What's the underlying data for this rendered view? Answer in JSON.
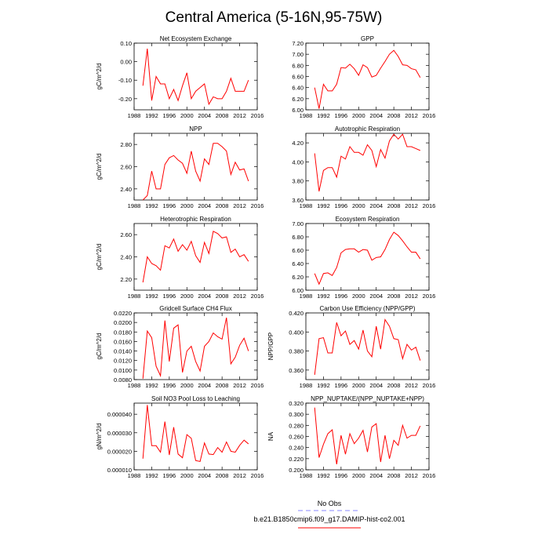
{
  "title": "Central America (5-16N,95-75W)",
  "legend": {
    "entries": [
      {
        "label": "No Obs",
        "color": "#8888ff",
        "dash": true
      },
      {
        "label": "b.e21.B1850cmip6.f09_g17.DAMIP-hist-co2.001",
        "color": "#ff0000",
        "dash": false
      }
    ]
  },
  "chart_data": [
    {
      "type": "line",
      "title": "Net Ecosystem Exchange",
      "ylabel": "gC/m^2/d",
      "xlim": [
        1988,
        2016
      ],
      "ylim": [
        -0.26,
        0.1
      ],
      "xticks": [
        "1988",
        "1992",
        "1996",
        "2000",
        "2004",
        "2008",
        "2012",
        "2016"
      ],
      "yticks": [
        "0.10",
        "0.00",
        "-0.10",
        "-0.20"
      ],
      "ytick_values": [
        0.1,
        0.0,
        -0.1,
        -0.2
      ],
      "x": [
        1990,
        1991,
        1992,
        1993,
        1994,
        1995,
        1996,
        1997,
        1998,
        1999,
        2000,
        2001,
        2002,
        2003,
        2004,
        2005,
        2006,
        2007,
        2008,
        2009,
        2010,
        2011,
        2012,
        2013,
        2014
      ],
      "series": [
        {
          "name": "b.e21.B1850cmip6.f09_g17.DAMIP-hist-co2.001",
          "color": "#ff0000",
          "values": [
            -0.13,
            0.07,
            -0.21,
            -0.08,
            -0.12,
            -0.12,
            -0.2,
            -0.15,
            -0.21,
            -0.13,
            -0.06,
            -0.2,
            -0.16,
            -0.14,
            -0.12,
            -0.23,
            -0.19,
            -0.2,
            -0.2,
            -0.16,
            -0.09,
            -0.16,
            -0.16,
            -0.16,
            -0.1
          ]
        }
      ]
    },
    {
      "type": "line",
      "title": "GPP",
      "ylabel": "",
      "xlim": [
        1988,
        2016
      ],
      "ylim": [
        6.0,
        7.2
      ],
      "xticks": [
        "1988",
        "1992",
        "1996",
        "2000",
        "2004",
        "2008",
        "2012",
        "2016"
      ],
      "yticks": [
        "7.20",
        "7.00",
        "6.80",
        "6.60",
        "6.40",
        "6.20",
        "6.00"
      ],
      "ytick_values": [
        7.2,
        7.0,
        6.8,
        6.6,
        6.4,
        6.2,
        6.0
      ],
      "x": [
        1990,
        1991,
        1992,
        1993,
        1994,
        1995,
        1996,
        1997,
        1998,
        1999,
        2000,
        2001,
        2002,
        2003,
        2004,
        2005,
        2006,
        2007,
        2008,
        2009,
        2010,
        2011,
        2012,
        2013,
        2014
      ],
      "series": [
        {
          "name": "b.e21.B1850cmip6.f09_g17.DAMIP-hist-co2.001",
          "color": "#ff0000",
          "values": [
            6.4,
            6.02,
            6.46,
            6.34,
            6.34,
            6.46,
            6.76,
            6.75,
            6.82,
            6.74,
            6.62,
            6.81,
            6.76,
            6.59,
            6.62,
            6.75,
            6.87,
            7.0,
            7.07,
            6.96,
            6.81,
            6.8,
            6.74,
            6.72,
            6.58
          ]
        }
      ]
    },
    {
      "type": "line",
      "title": "NPP",
      "ylabel": "gC/m^2/d",
      "xlim": [
        1988,
        2016
      ],
      "ylim": [
        2.3,
        2.9
      ],
      "xticks": [
        "1988",
        "1992",
        "1996",
        "2000",
        "2004",
        "2008",
        "2012",
        "2016"
      ],
      "yticks": [
        "2.80",
        "2.60",
        "2.40"
      ],
      "ytick_values": [
        2.8,
        2.6,
        2.4
      ],
      "x": [
        1990,
        1991,
        1992,
        1993,
        1994,
        1995,
        1996,
        1997,
        1998,
        1999,
        2000,
        2001,
        2002,
        2003,
        2004,
        2005,
        2006,
        2007,
        2008,
        2009,
        2010,
        2011,
        2012,
        2013,
        2014
      ],
      "series": [
        {
          "name": "b.e21.B1850cmip6.f09_g17.DAMIP-hist-co2.001",
          "color": "#ff0000",
          "values": [
            2.3,
            2.34,
            2.56,
            2.4,
            2.4,
            2.62,
            2.68,
            2.7,
            2.66,
            2.63,
            2.54,
            2.74,
            2.56,
            2.47,
            2.67,
            2.62,
            2.81,
            2.81,
            2.78,
            2.74,
            2.53,
            2.64,
            2.57,
            2.58,
            2.47
          ]
        }
      ]
    },
    {
      "type": "line",
      "title": "Autotrophic Respiration",
      "ylabel": "",
      "xlim": [
        1988,
        2016
      ],
      "ylim": [
        3.6,
        4.3
      ],
      "xticks": [
        "1988",
        "1992",
        "1996",
        "2000",
        "2004",
        "2008",
        "2012",
        "2016"
      ],
      "yticks": [
        "4.20",
        "4.00",
        "3.80",
        "3.60"
      ],
      "ytick_values": [
        4.2,
        4.0,
        3.8,
        3.6
      ],
      "x": [
        1990,
        1991,
        1992,
        1993,
        1994,
        1995,
        1996,
        1997,
        1998,
        1999,
        2000,
        2001,
        2002,
        2003,
        2004,
        2005,
        2006,
        2007,
        2008,
        2009,
        2010,
        2011,
        2012,
        2013,
        2014
      ],
      "series": [
        {
          "name": "b.e21.B1850cmip6.f09_g17.DAMIP-hist-co2.001",
          "color": "#ff0000",
          "values": [
            4.09,
            3.69,
            3.91,
            3.94,
            3.94,
            3.84,
            4.06,
            4.03,
            4.16,
            4.1,
            4.1,
            4.07,
            4.18,
            4.12,
            3.95,
            4.13,
            4.04,
            4.22,
            4.29,
            4.24,
            4.29,
            4.16,
            4.16,
            4.14,
            4.12
          ]
        }
      ]
    },
    {
      "type": "line",
      "title": "Heterotrophic Respiration",
      "ylabel": "gC/m^2/d",
      "xlim": [
        1988,
        2016
      ],
      "ylim": [
        2.1,
        2.7
      ],
      "xticks": [
        "1988",
        "1992",
        "1996",
        "2000",
        "2004",
        "2008",
        "2012",
        "2016"
      ],
      "yticks": [
        "2.60",
        "2.40",
        "2.20"
      ],
      "ytick_values": [
        2.6,
        2.4,
        2.2
      ],
      "x": [
        1990,
        1991,
        1992,
        1993,
        1994,
        1995,
        1996,
        1997,
        1998,
        1999,
        2000,
        2001,
        2002,
        2003,
        2004,
        2005,
        2006,
        2007,
        2008,
        2009,
        2010,
        2011,
        2012,
        2013,
        2014
      ],
      "series": [
        {
          "name": "b.e21.B1850cmip6.f09_g17.DAMIP-hist-co2.001",
          "color": "#ff0000",
          "values": [
            2.17,
            2.4,
            2.34,
            2.32,
            2.28,
            2.5,
            2.48,
            2.56,
            2.45,
            2.51,
            2.46,
            2.54,
            2.41,
            2.35,
            2.53,
            2.43,
            2.63,
            2.61,
            2.57,
            2.58,
            2.44,
            2.47,
            2.4,
            2.42,
            2.36
          ]
        }
      ]
    },
    {
      "type": "line",
      "title": "Ecosystem Respiration",
      "ylabel": "",
      "xlim": [
        1988,
        2016
      ],
      "ylim": [
        6.0,
        7.0
      ],
      "xticks": [
        "1988",
        "1992",
        "1996",
        "2000",
        "2004",
        "2008",
        "2012",
        "2016"
      ],
      "yticks": [
        "7.00",
        "6.80",
        "6.60",
        "6.40",
        "6.20",
        "6.00"
      ],
      "ytick_values": [
        7.0,
        6.8,
        6.6,
        6.4,
        6.2,
        6.0
      ],
      "x": [
        1990,
        1991,
        1992,
        1993,
        1994,
        1995,
        1996,
        1997,
        1998,
        1999,
        2000,
        2001,
        2002,
        2003,
        2004,
        2005,
        2006,
        2007,
        2008,
        2009,
        2010,
        2011,
        2012,
        2013,
        2014
      ],
      "series": [
        {
          "name": "b.e21.B1850cmip6.f09_g17.DAMIP-hist-co2.001",
          "color": "#ff0000",
          "values": [
            6.25,
            6.09,
            6.25,
            6.26,
            6.22,
            6.34,
            6.56,
            6.61,
            6.62,
            6.62,
            6.57,
            6.61,
            6.6,
            6.45,
            6.49,
            6.5,
            6.61,
            6.76,
            6.87,
            6.82,
            6.74,
            6.65,
            6.57,
            6.57,
            6.47
          ]
        }
      ]
    },
    {
      "type": "line",
      "title": "Gridcell Surface CH4 Flux",
      "ylabel": "gC/m^2/d",
      "xlim": [
        1988,
        2016
      ],
      "ylim": [
        0.008,
        0.022
      ],
      "xticks": [
        "1988",
        "1992",
        "1996",
        "2000",
        "2004",
        "2008",
        "2012",
        "2016"
      ],
      "yticks": [
        "0.0220",
        "0.0200",
        "0.0180",
        "0.0160",
        "0.0140",
        "0.0120",
        "0.0100",
        "0.0080"
      ],
      "ytick_values": [
        0.022,
        0.02,
        0.018,
        0.016,
        0.014,
        0.012,
        0.01,
        0.008
      ],
      "x": [
        1990,
        1991,
        1992,
        1993,
        1994,
        1995,
        1996,
        1997,
        1998,
        1999,
        2000,
        2001,
        2002,
        2003,
        2004,
        2005,
        2006,
        2007,
        2008,
        2009,
        2010,
        2011,
        2012,
        2013,
        2014
      ],
      "series": [
        {
          "name": "b.e21.B1850cmip6.f09_g17.DAMIP-hist-co2.001",
          "color": "#ff0000",
          "values": [
            0.0082,
            0.0182,
            0.0168,
            0.0108,
            0.0088,
            0.0204,
            0.0118,
            0.0188,
            0.0195,
            0.0095,
            0.014,
            0.015,
            0.0118,
            0.0098,
            0.015,
            0.016,
            0.0178,
            0.017,
            0.0165,
            0.021,
            0.0113,
            0.0127,
            0.0152,
            0.0167,
            0.014
          ]
        }
      ]
    },
    {
      "type": "line",
      "title": "Carbon Use Efficiency (NPP/GPP)",
      "ylabel": "NPP/GPP",
      "xlim": [
        1988,
        2016
      ],
      "ylim": [
        0.35,
        0.42
      ],
      "xticks": [
        "1988",
        "1992",
        "1996",
        "2000",
        "2004",
        "2008",
        "2012",
        "2016"
      ],
      "yticks": [
        "0.420",
        "0.400",
        "0.380",
        "0.360"
      ],
      "ytick_values": [
        0.42,
        0.4,
        0.38,
        0.36
      ],
      "x": [
        1990,
        1991,
        1992,
        1993,
        1994,
        1995,
        1996,
        1997,
        1998,
        1999,
        2000,
        2001,
        2002,
        2003,
        2004,
        2005,
        2006,
        2007,
        2008,
        2009,
        2010,
        2011,
        2012,
        2013,
        2014
      ],
      "series": [
        {
          "name": "b.e21.B1850cmip6.f09_g17.DAMIP-hist-co2.001",
          "color": "#ff0000",
          "values": [
            0.355,
            0.393,
            0.394,
            0.378,
            0.378,
            0.41,
            0.396,
            0.401,
            0.387,
            0.391,
            0.382,
            0.402,
            0.38,
            0.374,
            0.406,
            0.382,
            0.413,
            0.406,
            0.393,
            0.392,
            0.372,
            0.387,
            0.381,
            0.384,
            0.37
          ]
        }
      ]
    },
    {
      "type": "line",
      "title": "Soil NO3 Pool Loss to Leaching",
      "ylabel": "gN/m^2/d",
      "xlim": [
        1988,
        2016
      ],
      "ylim": [
        1e-05,
        4.6e-05
      ],
      "xticks": [
        "1988",
        "1992",
        "1996",
        "2000",
        "2004",
        "2008",
        "2012",
        "2016"
      ],
      "yticks": [
        "0.000040",
        "0.000030",
        "0.000020",
        "0.000010"
      ],
      "ytick_values": [
        4e-05,
        3e-05,
        2e-05,
        1e-05
      ],
      "x": [
        1990,
        1991,
        1992,
        1993,
        1994,
        1995,
        1996,
        1997,
        1998,
        1999,
        2000,
        2001,
        2002,
        2003,
        2004,
        2005,
        2006,
        2007,
        2008,
        2009,
        2010,
        2011,
        2012,
        2013,
        2014
      ],
      "series": [
        {
          "name": "b.e21.B1850cmip6.f09_g17.DAMIP-hist-co2.001",
          "color": "#ff0000",
          "values": [
            1.6e-05,
            4.5e-05,
            2.3e-05,
            2.3e-05,
            1.95e-05,
            3.6e-05,
            1.8e-05,
            3.3e-05,
            1.85e-05,
            1.65e-05,
            2.9e-05,
            2.7e-05,
            1.5e-05,
            1.45e-05,
            2.45e-05,
            1.85e-05,
            1.82e-05,
            2.2e-05,
            1.95e-05,
            2.5e-05,
            2e-05,
            1.95e-05,
            2.32e-05,
            2.6e-05,
            2.4e-05
          ]
        }
      ]
    },
    {
      "type": "line",
      "title": "NPP_NUPTAKE/(NPP_NUPTAKE+NPP)",
      "ylabel": "NA",
      "xlim": [
        1988,
        2016
      ],
      "ylim": [
        0.2,
        0.32
      ],
      "xticks": [
        "1988",
        "1992",
        "1996",
        "2000",
        "2004",
        "2008",
        "2012",
        "2016"
      ],
      "yticks": [
        "0.320",
        "0.300",
        "0.280",
        "0.260",
        "0.240",
        "0.220",
        "0.200"
      ],
      "ytick_values": [
        0.32,
        0.3,
        0.28,
        0.26,
        0.24,
        0.22,
        0.2
      ],
      "x": [
        1990,
        1991,
        1992,
        1993,
        1994,
        1995,
        1996,
        1997,
        1998,
        1999,
        2000,
        2001,
        2002,
        2003,
        2004,
        2005,
        2006,
        2007,
        2008,
        2009,
        2010,
        2011,
        2012,
        2013,
        2014
      ],
      "series": [
        {
          "name": "b.e21.B1850cmip6.f09_g17.DAMIP-hist-co2.001",
          "color": "#ff0000",
          "values": [
            0.312,
            0.222,
            0.246,
            0.265,
            0.272,
            0.21,
            0.262,
            0.228,
            0.265,
            0.247,
            0.257,
            0.271,
            0.232,
            0.277,
            0.283,
            0.214,
            0.262,
            0.22,
            0.253,
            0.244,
            0.28,
            0.257,
            0.262,
            0.262,
            0.279
          ]
        }
      ]
    }
  ]
}
